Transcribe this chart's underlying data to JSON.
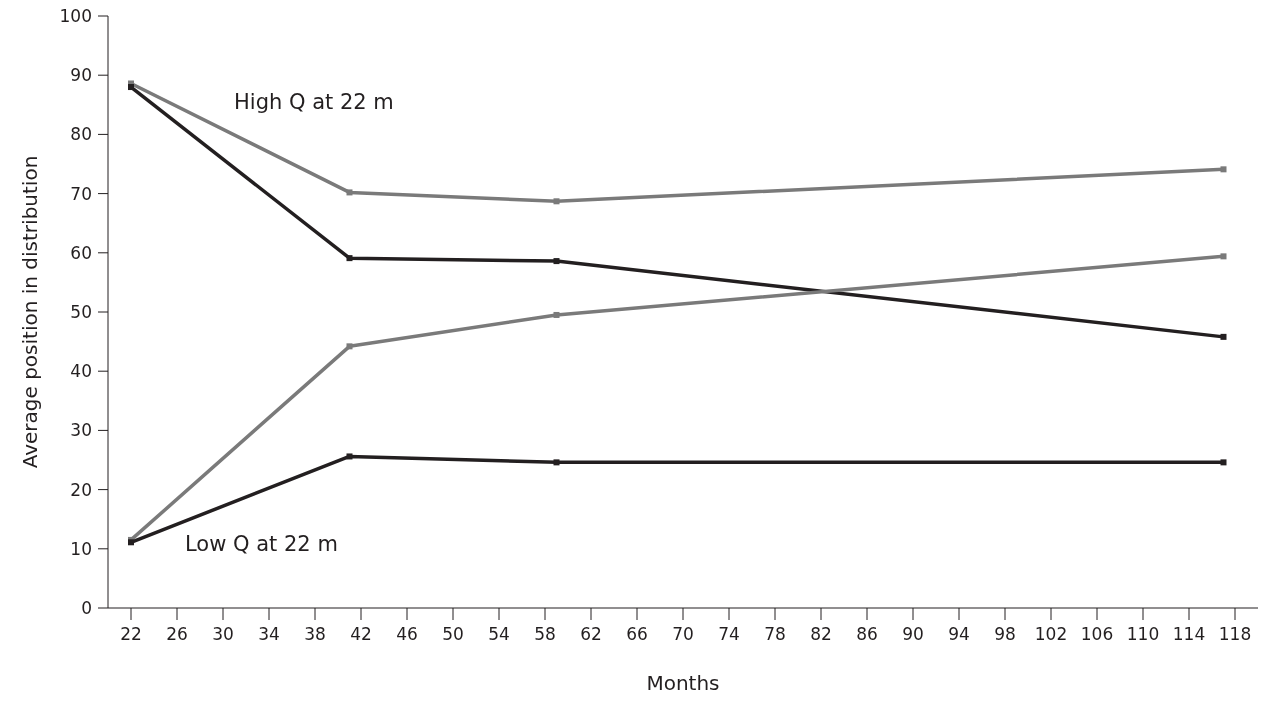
{
  "chart_data": {
    "type": "line",
    "xlabel": "Months",
    "ylabel": "Average position in distribution",
    "x": [
      22,
      41,
      59,
      117
    ],
    "series": [
      {
        "color": "#7a7a7a",
        "values": [
          88.6,
          70.2,
          68.7,
          74.1
        ]
      },
      {
        "color": "#231f20",
        "values": [
          88,
          59.1,
          58.6,
          45.8
        ]
      },
      {
        "color": "#7a7a7a",
        "values": [
          11.5,
          44.2,
          49.5,
          59.4
        ]
      },
      {
        "color": "#231f20",
        "values": [
          11.1,
          25.6,
          24.6,
          24.6
        ]
      }
    ],
    "xlim": [
      20,
      120
    ],
    "xticks": [
      22,
      26,
      30,
      34,
      38,
      42,
      46,
      50,
      54,
      58,
      62,
      66,
      70,
      74,
      78,
      82,
      86,
      90,
      94,
      98,
      102,
      106,
      110,
      114,
      118
    ],
    "ylim": [
      0,
      100
    ],
    "yticks": [
      0,
      10,
      20,
      30,
      40,
      50,
      60,
      70,
      80,
      90,
      100
    ],
    "marker": "square",
    "line_style": "solid",
    "annotations": [
      "High Q at 22 m",
      "Low Q at 22 m"
    ]
  }
}
